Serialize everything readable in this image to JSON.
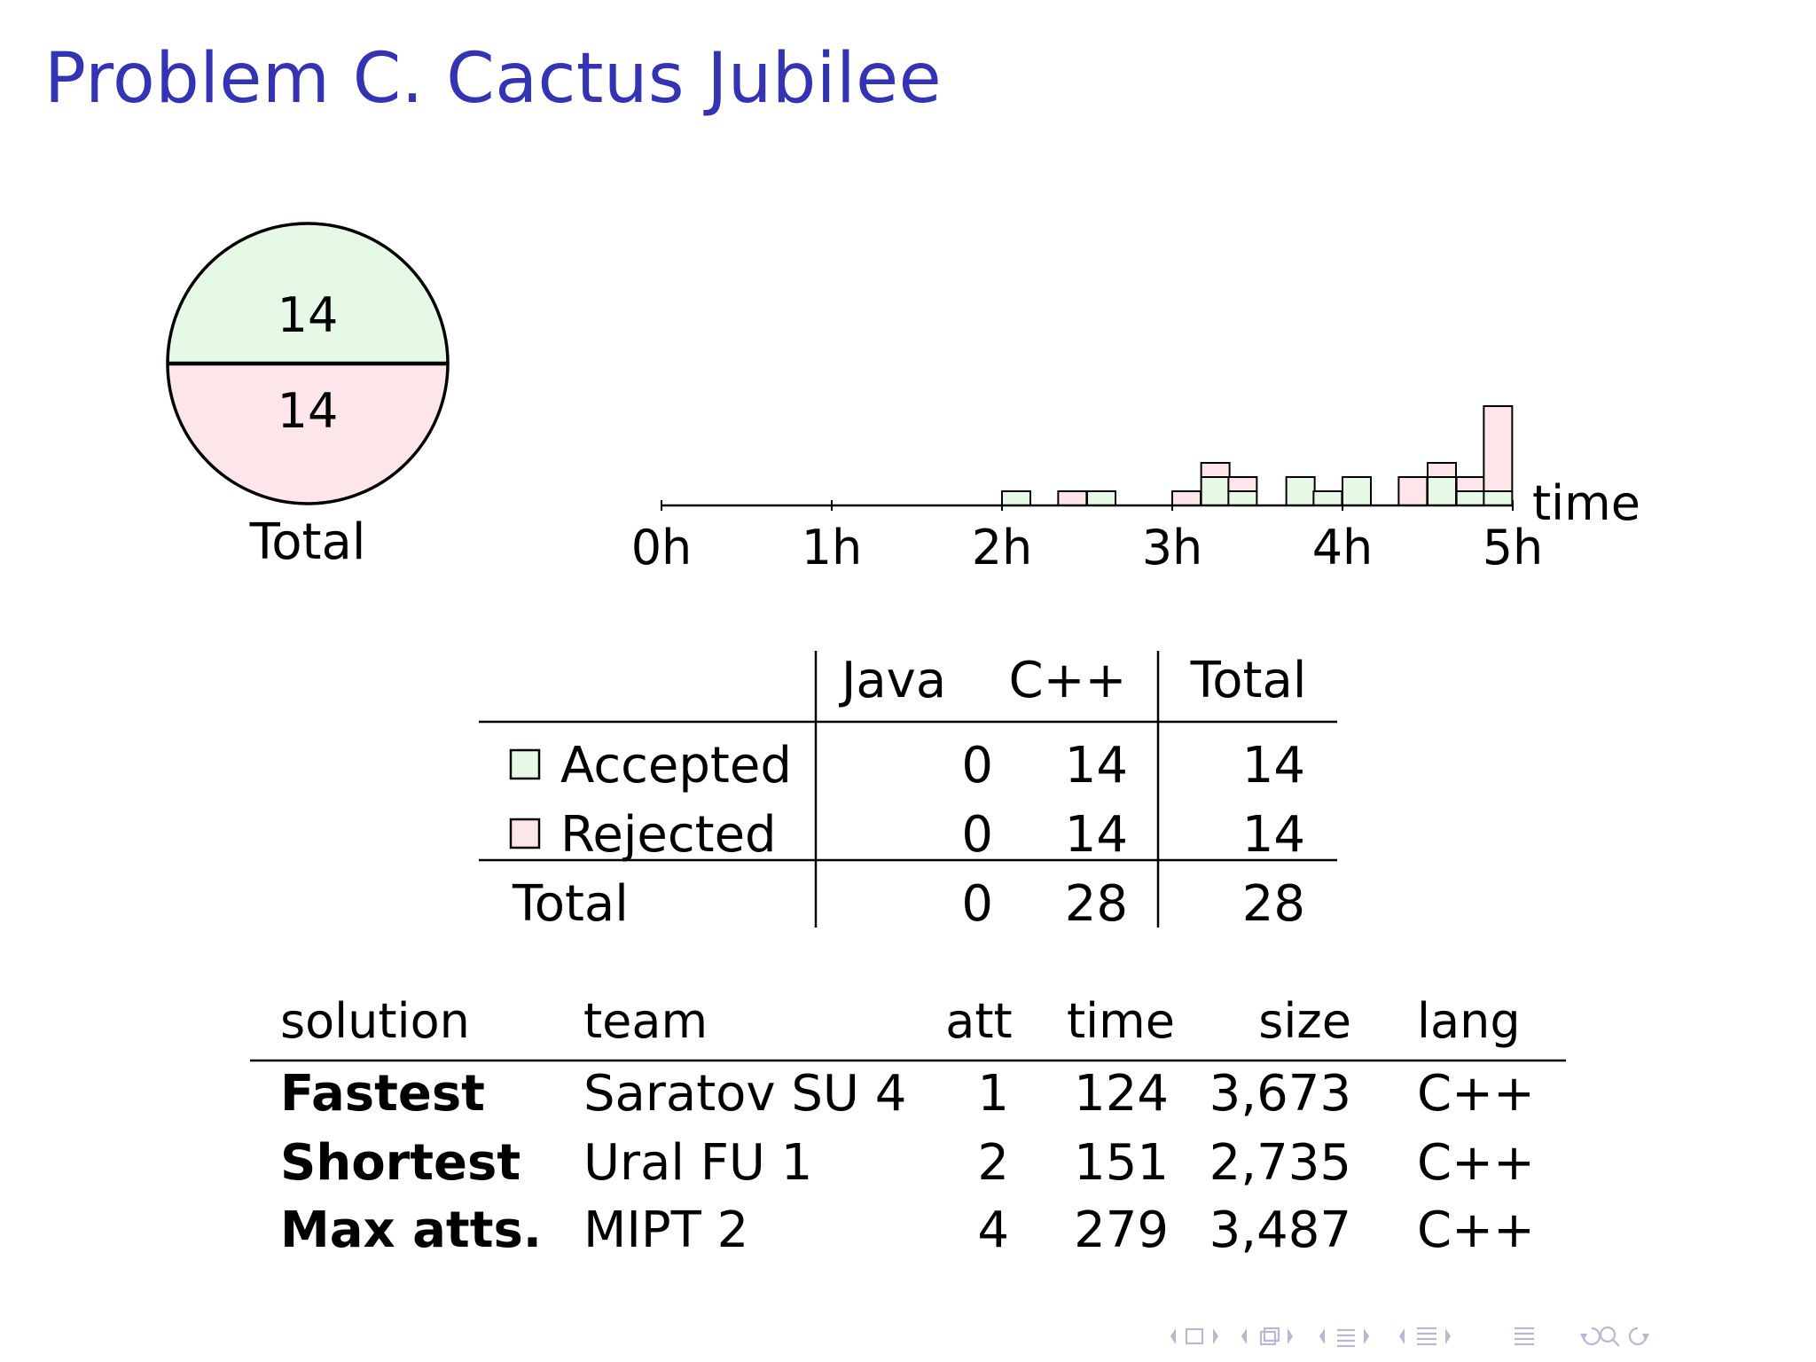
{
  "slide": {
    "title": "Problem C. Cactus Jubilee"
  },
  "colors": {
    "title": "#3333b3",
    "accepted_fill": "#e6f8e6",
    "rejected_fill": "#fde6ea",
    "nav_icons": "#b8b8d0"
  },
  "nav": {
    "icons": [
      "frame-prev-icon",
      "frame-icon",
      "frame-next-icon",
      "subsection-prev-icon",
      "subsection-icon",
      "subsection-next-icon",
      "section-prev-icon",
      "section-icon",
      "section-next-icon",
      "doc-prev-icon",
      "doc-icon",
      "doc-next-icon",
      "toc-icon",
      "back-icon",
      "search-icon",
      "forward-icon"
    ]
  },
  "chart_data": [
    {
      "type": "pie",
      "slices": [
        {
          "name": "Accepted",
          "value": 14,
          "color": "#e6f8e6"
        },
        {
          "name": "Rejected",
          "value": 14,
          "color": "#fde6ea"
        }
      ],
      "xlabel": "Total"
    },
    {
      "type": "bar",
      "stacked": true,
      "xlabel": "time",
      "ticks": [
        "0h",
        "1h",
        "2h",
        "3h",
        "4h",
        "5h"
      ],
      "xlim_hours": [
        0,
        5
      ],
      "bin_minutes": 10,
      "bins": [
        {
          "t": 2.0,
          "accepted": 1,
          "rejected": 0
        },
        {
          "t": 2.33,
          "accepted": 0,
          "rejected": 1
        },
        {
          "t": 2.5,
          "accepted": 1,
          "rejected": 0
        },
        {
          "t": 3.0,
          "accepted": 0,
          "rejected": 1
        },
        {
          "t": 3.17,
          "accepted": 2,
          "rejected": 1
        },
        {
          "t": 3.33,
          "accepted": 1,
          "rejected": 1
        },
        {
          "t": 3.67,
          "accepted": 2,
          "rejected": 0
        },
        {
          "t": 3.83,
          "accepted": 1,
          "rejected": 0
        },
        {
          "t": 4.0,
          "accepted": 2,
          "rejected": 0
        },
        {
          "t": 4.33,
          "accepted": 0,
          "rejected": 2
        },
        {
          "t": 4.5,
          "accepted": 2,
          "rejected": 1
        },
        {
          "t": 4.67,
          "accepted": 1,
          "rejected": 1
        },
        {
          "t": 4.83,
          "accepted": 1,
          "rejected": 6
        }
      ]
    },
    {
      "type": "table",
      "columns": [
        "",
        "Java",
        "C++",
        "Total"
      ],
      "rows": [
        {
          "label": "Accepted",
          "values": [
            "0",
            "14",
            "14"
          ],
          "swatch": "#e6f8e6"
        },
        {
          "label": "Rejected",
          "values": [
            "0",
            "14",
            "14"
          ],
          "swatch": "#fde6ea"
        }
      ],
      "total_row": {
        "label": "Total",
        "values": [
          "0",
          "28",
          "28"
        ]
      }
    },
    {
      "type": "table",
      "columns": [
        "solution",
        "team",
        "att",
        "time",
        "size",
        "lang"
      ],
      "rows": [
        [
          "Fastest",
          "Saratov SU 4",
          "1",
          "124",
          "3,673",
          "C++"
        ],
        [
          "Shortest",
          "Ural FU 1",
          "2",
          "151",
          "2,735",
          "C++"
        ],
        [
          "Max atts.",
          "MIPT 2",
          "4",
          "279",
          "3,487",
          "C++"
        ]
      ]
    }
  ]
}
